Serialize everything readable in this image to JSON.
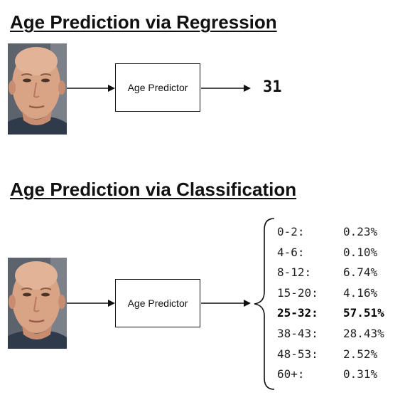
{
  "regression": {
    "title": "Age Prediction via Regression",
    "predictor_label": "Age Predictor",
    "output": "31"
  },
  "classification": {
    "title": "Age Prediction via Classification",
    "predictor_label": "Age Predictor",
    "classes": [
      {
        "label": "0-2:",
        "pct": "0.23%",
        "bold": false
      },
      {
        "label": "4-6:",
        "pct": "0.10%",
        "bold": false
      },
      {
        "label": "8-12:",
        "pct": "6.74%",
        "bold": false
      },
      {
        "label": "15-20:",
        "pct": "4.16%",
        "bold": false
      },
      {
        "label": "25-32:",
        "pct": "57.51%",
        "bold": true
      },
      {
        "label": "38-43:",
        "pct": "28.43%",
        "bold": false
      },
      {
        "label": "48-53:",
        "pct": "2.52%",
        "bold": false
      },
      {
        "label": "60+:",
        "pct": "0.31%",
        "bold": false
      }
    ]
  },
  "colors": {
    "line": "#111111",
    "skin": "#d9a486",
    "skin_shadow": "#b97a5e",
    "background_photo": "#6a6f78"
  }
}
